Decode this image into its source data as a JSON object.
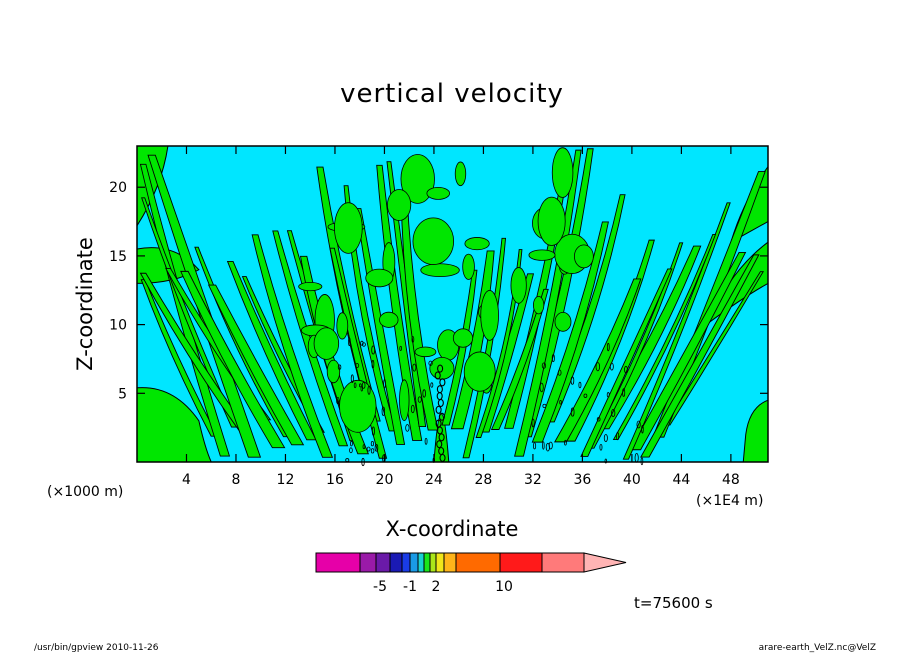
{
  "chart_data": {
    "type": "heatmap",
    "title": "vertical velocity",
    "xlabel": "X-coordinate",
    "ylabel": "Z-coordinate",
    "x_unit_left": "(×1000 m)",
    "x_unit_right": "(×1E4 m)",
    "x_ticks": [
      "4",
      "8",
      "12",
      "16",
      "20",
      "24",
      "28",
      "32",
      "36",
      "40",
      "44",
      "48"
    ],
    "y_ticks": [
      "5",
      "10",
      "15",
      "20"
    ],
    "xlim": [
      0,
      51
    ],
    "ylim": [
      0,
      23
    ],
    "grid": false,
    "colorbar": {
      "tick_labels": [
        "-5",
        "-1",
        "2",
        "10"
      ],
      "colors": [
        "#e600a8",
        "#9a1aa8",
        "#6a1aa8",
        "#1a1ab4",
        "#1a3ce6",
        "#1a9ae6",
        "#1ad2d2",
        "#1ae61a",
        "#aae61a",
        "#f0e61a",
        "#ffb41a",
        "#ff6a00",
        "#ff1a1a",
        "#ff7a7a",
        "#ffb4b4"
      ]
    },
    "field_colors": {
      "negative": "#00e6ff",
      "positive": "#00e600",
      "contour": "#000000"
    },
    "time_label": "t=75600 s"
  },
  "footer": {
    "left": "/usr/bin/gpview   2010-11-26",
    "right": "arare-earth_VelZ.nc@VelZ"
  }
}
